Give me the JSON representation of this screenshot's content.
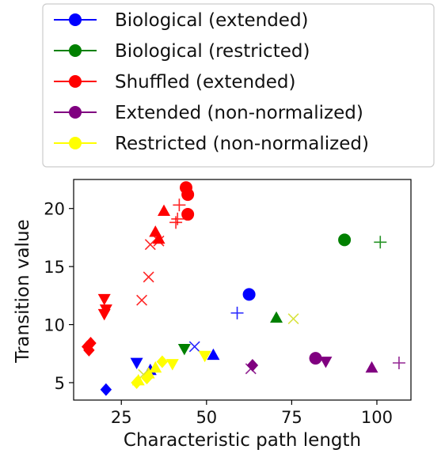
{
  "chart_data": {
    "type": "scatter",
    "xlabel": "Characteristic path length",
    "ylabel": "Transition value",
    "xlim": [
      11,
      110
    ],
    "ylim": [
      3.5,
      22.5
    ],
    "xticks": [
      "25",
      "50",
      "75",
      "100"
    ],
    "yticks": [
      "5",
      "10",
      "15",
      "20"
    ],
    "legend_position": "top",
    "legend": [
      {
        "label": "Biological (extended)",
        "color": "#0000ff"
      },
      {
        "label": "Biological (restricted)",
        "color": "#008000"
      },
      {
        "label": "Shuffled (extended)",
        "color": "#ff0000"
      },
      {
        "label": "Extended (non-normalized)",
        "color": "#800080"
      },
      {
        "label": "Restricted (non-normalized)",
        "color": "#ffff00"
      }
    ],
    "series": [
      {
        "name": "Biological (extended)",
        "color": "#0000ff",
        "points": [
          {
            "x": 62.5,
            "y": 12.6,
            "marker": "circle"
          },
          {
            "x": 59.0,
            "y": 11.0,
            "marker": "plus"
          },
          {
            "x": 46.5,
            "y": 8.1,
            "marker": "x"
          },
          {
            "x": 52.0,
            "y": 7.4,
            "marker": "triangle-up"
          },
          {
            "x": 29.5,
            "y": 6.7,
            "marker": "triangle-down"
          },
          {
            "x": 33.5,
            "y": 6.1,
            "marker": "triangle-up"
          },
          {
            "x": 20.5,
            "y": 4.4,
            "marker": "diamond"
          }
        ]
      },
      {
        "name": "Biological (restricted)",
        "color": "#008000",
        "points": [
          {
            "x": 90.5,
            "y": 17.3,
            "marker": "circle"
          },
          {
            "x": 101.0,
            "y": 17.1,
            "marker": "plus"
          },
          {
            "x": 70.5,
            "y": 10.6,
            "marker": "triangle-up"
          },
          {
            "x": 43.5,
            "y": 7.9,
            "marker": "triangle-down"
          }
        ]
      },
      {
        "name": "Shuffled (extended)",
        "color": "#ff0000",
        "points": [
          {
            "x": 44.0,
            "y": 21.8,
            "marker": "circle"
          },
          {
            "x": 44.5,
            "y": 21.2,
            "marker": "circle"
          },
          {
            "x": 44.5,
            "y": 19.5,
            "marker": "circle"
          },
          {
            "x": 42.0,
            "y": 20.3,
            "marker": "plus"
          },
          {
            "x": 41.5,
            "y": 19.1,
            "marker": "plus"
          },
          {
            "x": 41.0,
            "y": 18.8,
            "marker": "plus"
          },
          {
            "x": 37.5,
            "y": 19.8,
            "marker": "triangle-up"
          },
          {
            "x": 35.0,
            "y": 18.0,
            "marker": "triangle-up"
          },
          {
            "x": 36.0,
            "y": 17.4,
            "marker": "triangle-up"
          },
          {
            "x": 36.0,
            "y": 17.2,
            "marker": "x"
          },
          {
            "x": 33.5,
            "y": 16.9,
            "marker": "x"
          },
          {
            "x": 33.0,
            "y": 14.1,
            "marker": "x"
          },
          {
            "x": 31.0,
            "y": 12.1,
            "marker": "x"
          },
          {
            "x": 20.0,
            "y": 12.2,
            "marker": "triangle-down"
          },
          {
            "x": 20.5,
            "y": 11.3,
            "marker": "triangle-down"
          },
          {
            "x": 20.0,
            "y": 10.9,
            "marker": "triangle-down"
          },
          {
            "x": 16.0,
            "y": 8.4,
            "marker": "diamond"
          },
          {
            "x": 15.0,
            "y": 8.1,
            "marker": "diamond"
          },
          {
            "x": 15.5,
            "y": 7.8,
            "marker": "diamond"
          }
        ]
      },
      {
        "name": "Extended (non-normalized)",
        "color": "#800080",
        "points": [
          {
            "x": 82.0,
            "y": 7.1,
            "marker": "circle"
          },
          {
            "x": 85.0,
            "y": 6.8,
            "marker": "triangle-down"
          },
          {
            "x": 98.5,
            "y": 6.3,
            "marker": "triangle-up"
          },
          {
            "x": 106.5,
            "y": 6.7,
            "marker": "plus"
          },
          {
            "x": 63.5,
            "y": 6.5,
            "marker": "diamond"
          },
          {
            "x": 63.0,
            "y": 6.2,
            "marker": "x"
          }
        ]
      },
      {
        "name": "Restricted (non-normalized)",
        "color": "#ffff00",
        "points": [
          {
            "x": 75.5,
            "y": 10.5,
            "marker": "x"
          },
          {
            "x": 49.5,
            "y": 7.3,
            "marker": "triangle-down"
          },
          {
            "x": 40.0,
            "y": 6.6,
            "marker": "triangle-down"
          },
          {
            "x": 37.0,
            "y": 6.8,
            "marker": "diamond"
          },
          {
            "x": 35.0,
            "y": 6.3,
            "marker": "triangle-up"
          },
          {
            "x": 33.0,
            "y": 5.8,
            "marker": "triangle-up"
          },
          {
            "x": 31.5,
            "y": 5.7,
            "marker": "x"
          },
          {
            "x": 32.5,
            "y": 5.4,
            "marker": "diamond"
          },
          {
            "x": 30.0,
            "y": 5.2,
            "marker": "triangle-up"
          },
          {
            "x": 29.5,
            "y": 5.0,
            "marker": "diamond"
          }
        ]
      }
    ]
  }
}
